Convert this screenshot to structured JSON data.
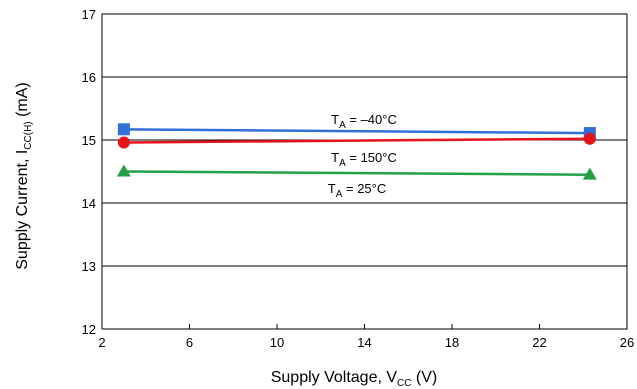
{
  "chart_data": {
    "type": "line",
    "xlabel": {
      "main": "Supply Voltage, V",
      "sub": "CC",
      "unit": " (V)"
    },
    "ylabel": {
      "main": "Supply Current, I",
      "sub": "CC(H)",
      "unit": " (mA)"
    },
    "xlim": [
      2,
      26
    ],
    "ylim": [
      12,
      17
    ],
    "xticks": [
      2,
      6,
      10,
      14,
      18,
      22,
      26
    ],
    "yticks": [
      12,
      13,
      14,
      15,
      16,
      17
    ],
    "grid": {
      "horizontal": true,
      "vertical": false
    },
    "legend": "none",
    "series": [
      {
        "label_main": "T",
        "label_sub": "A",
        "label_rest": " = –40°C",
        "color": "#2f6fd6",
        "marker": "square",
        "x": [
          3,
          24.3
        ],
        "y": [
          15.17,
          15.11
        ]
      },
      {
        "label_main": "T",
        "label_sub": "A",
        "label_rest": " = 150°C",
        "color": "#e8121a",
        "marker": "circle",
        "x": [
          3,
          24.3
        ],
        "y": [
          14.96,
          15.02
        ]
      },
      {
        "label_main": "T",
        "label_sub": "A",
        "label_rest": " = 25°C",
        "color": "#21a045",
        "marker": "triangle",
        "x": [
          3,
          24.3
        ],
        "y": [
          14.5,
          14.45
        ]
      }
    ]
  }
}
